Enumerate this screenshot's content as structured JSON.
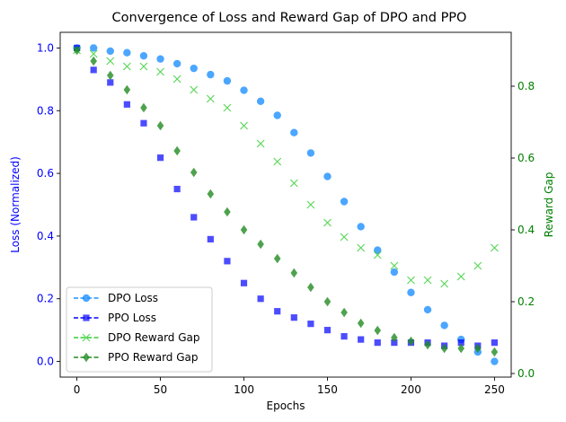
{
  "chart_data": {
    "type": "scatter",
    "title": "Convergence of Loss and Reward Gap of DPO and PPO",
    "xlabel": "Epochs",
    "ylabel_left": "Loss (Normalized)",
    "ylabel_right": "Reward Gap",
    "xlim": [
      -10,
      260
    ],
    "ylim_left": [
      -0.05,
      1.05
    ],
    "ylim_right": [
      -0.01,
      0.95
    ],
    "x_ticks": [
      0,
      50,
      100,
      150,
      200,
      250
    ],
    "y_left_ticks": [
      0.0,
      0.2,
      0.4,
      0.6,
      0.8,
      1.0
    ],
    "y_right_ticks": [
      0.0,
      0.2,
      0.4,
      0.6,
      0.8
    ],
    "grid": false,
    "legend_position": "lower-left",
    "colors": {
      "left_axis": "#0000ff",
      "right_axis": "#008000"
    },
    "series": [
      {
        "name": "DPO Loss",
        "axis": "left",
        "marker": "circle",
        "color": "#1e90ff",
        "x": [
          0,
          10,
          20,
          30,
          40,
          50,
          60,
          70,
          80,
          90,
          100,
          110,
          120,
          130,
          140,
          150,
          160,
          170,
          180,
          190,
          200,
          210,
          220,
          230,
          240,
          250
        ],
        "y": [
          1.0,
          1.0,
          0.99,
          0.985,
          0.975,
          0.965,
          0.95,
          0.935,
          0.915,
          0.895,
          0.865,
          0.83,
          0.785,
          0.73,
          0.665,
          0.59,
          0.51,
          0.43,
          0.355,
          0.285,
          0.22,
          0.165,
          0.115,
          0.07,
          0.03,
          0.0
        ]
      },
      {
        "name": "PPO Loss",
        "axis": "left",
        "marker": "square",
        "color": "#0000ff",
        "x": [
          0,
          10,
          20,
          30,
          40,
          50,
          60,
          70,
          80,
          90,
          100,
          110,
          120,
          130,
          140,
          150,
          160,
          170,
          180,
          190,
          200,
          210,
          220,
          230,
          240,
          250
        ],
        "y": [
          1.0,
          0.93,
          0.89,
          0.82,
          0.76,
          0.65,
          0.55,
          0.46,
          0.39,
          0.32,
          0.25,
          0.2,
          0.16,
          0.14,
          0.12,
          0.1,
          0.08,
          0.07,
          0.06,
          0.06,
          0.06,
          0.06,
          0.05,
          0.06,
          0.05,
          0.06
        ]
      },
      {
        "name": "DPO Reward Gap",
        "axis": "right",
        "marker": "x",
        "color": "#32cd32",
        "x": [
          0,
          10,
          20,
          30,
          40,
          50,
          60,
          70,
          80,
          90,
          100,
          110,
          120,
          130,
          140,
          150,
          160,
          170,
          180,
          190,
          200,
          210,
          220,
          230,
          240,
          250
        ],
        "y": [
          0.9,
          0.89,
          0.87,
          0.855,
          0.855,
          0.84,
          0.82,
          0.79,
          0.765,
          0.74,
          0.69,
          0.64,
          0.59,
          0.53,
          0.47,
          0.42,
          0.38,
          0.35,
          0.33,
          0.3,
          0.26,
          0.26,
          0.25,
          0.27,
          0.3,
          0.35
        ]
      },
      {
        "name": "PPO Reward Gap",
        "axis": "right",
        "marker": "diamond",
        "color": "#228b22",
        "x": [
          0,
          10,
          20,
          30,
          40,
          50,
          60,
          70,
          80,
          90,
          100,
          110,
          120,
          130,
          140,
          150,
          160,
          170,
          180,
          190,
          200,
          210,
          220,
          230,
          240,
          250
        ],
        "y": [
          0.9,
          0.87,
          0.83,
          0.79,
          0.74,
          0.69,
          0.62,
          0.56,
          0.5,
          0.45,
          0.4,
          0.36,
          0.32,
          0.28,
          0.24,
          0.2,
          0.17,
          0.14,
          0.12,
          0.1,
          0.09,
          0.08,
          0.07,
          0.07,
          0.07,
          0.06
        ]
      }
    ]
  }
}
